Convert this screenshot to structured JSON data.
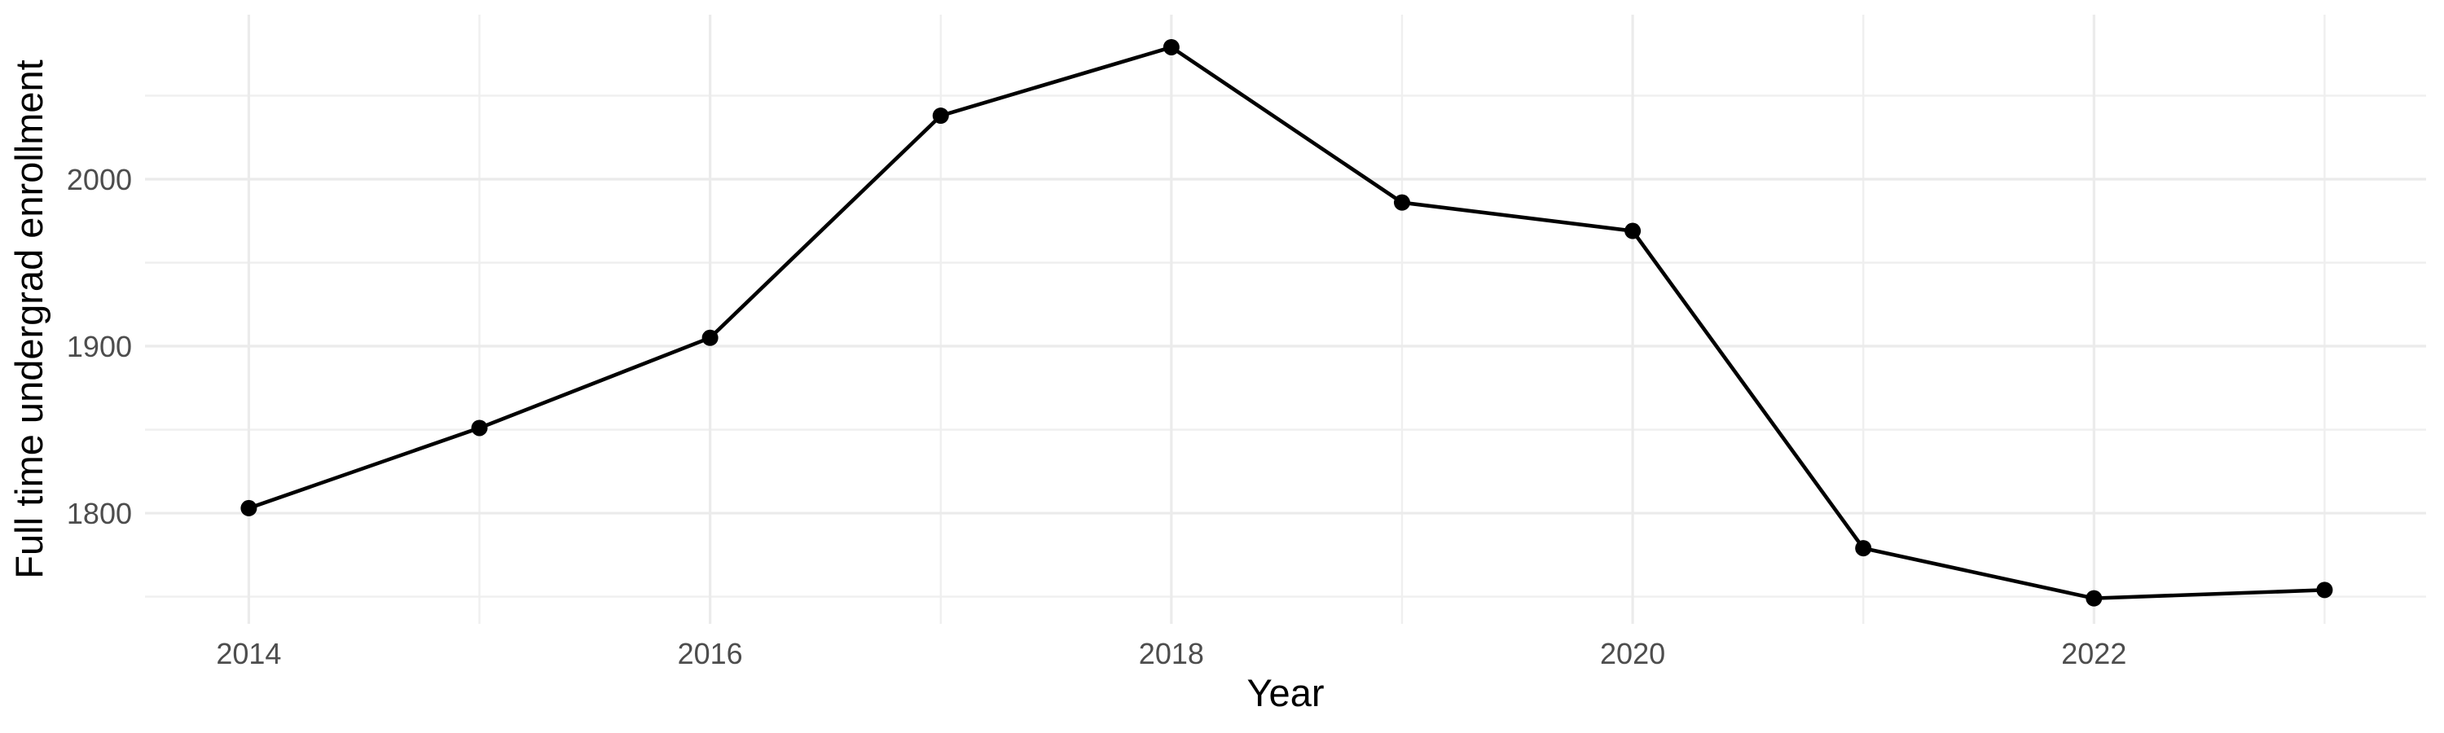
{
  "chart_data": {
    "type": "line",
    "title": "",
    "xlabel": "Year",
    "ylabel": "Full time undergrad enrollment",
    "x": [
      2014,
      2015,
      2016,
      2017,
      2018,
      2019,
      2020,
      2021,
      2022,
      2023
    ],
    "series": [
      {
        "name": "Full time undergrad enrollment",
        "values": [
          1803,
          1851,
          1905,
          2038,
          2079,
          1986,
          1969,
          1779,
          1749,
          1754
        ]
      }
    ],
    "x_major_ticks": [
      2014,
      2016,
      2018,
      2020,
      2022
    ],
    "x_minor_gridlines": [
      2015,
      2017,
      2019,
      2021,
      2023
    ],
    "y_major_ticks": [
      1800,
      1900,
      2000
    ],
    "y_minor_gridlines": [
      1750,
      1850,
      1950,
      2050
    ],
    "xlim": [
      2013.55,
      2023.44
    ],
    "ylim": [
      1733.7,
      2098.5
    ],
    "grid": true,
    "legend": false,
    "colors": {
      "line": "#000000",
      "point": "#000000",
      "grid_major": "#EBEBEB",
      "grid_minor": "#EFEFEF",
      "tick_label": "#4D4D4D",
      "axis_title": "#000000",
      "background": "#FFFFFF"
    }
  }
}
